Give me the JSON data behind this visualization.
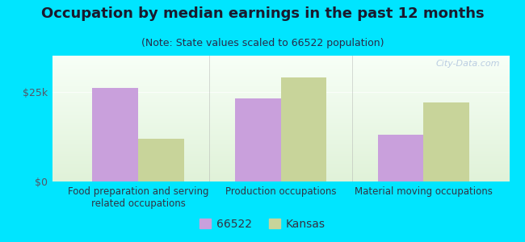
{
  "title": "Occupation by median earnings in the past 12 months",
  "subtitle": "(Note: State values scaled to 66522 population)",
  "categories": [
    "Food preparation and serving\nrelated occupations",
    "Production occupations",
    "Material moving occupations"
  ],
  "series_66522": [
    26000,
    23000,
    13000
  ],
  "series_kansas": [
    12000,
    29000,
    22000
  ],
  "color_66522": "#c9a0dc",
  "color_kansas": "#c8d49a",
  "ylabel_ticks": [
    "$0",
    "$25k"
  ],
  "ytick_vals": [
    0,
    25000
  ],
  "ylim": [
    0,
    35000
  ],
  "bg_outer": "#00e5ff",
  "legend_label_66522": "66522",
  "legend_label_kansas": "Kansas",
  "bar_width": 0.32,
  "watermark": "City-Data.com",
  "title_fontsize": 13,
  "subtitle_fontsize": 9,
  "tick_fontsize": 9,
  "legend_fontsize": 10,
  "title_color": "#1a1a2e",
  "subtitle_color": "#2a2a4a",
  "tick_color": "#555566",
  "label_color": "#333344"
}
